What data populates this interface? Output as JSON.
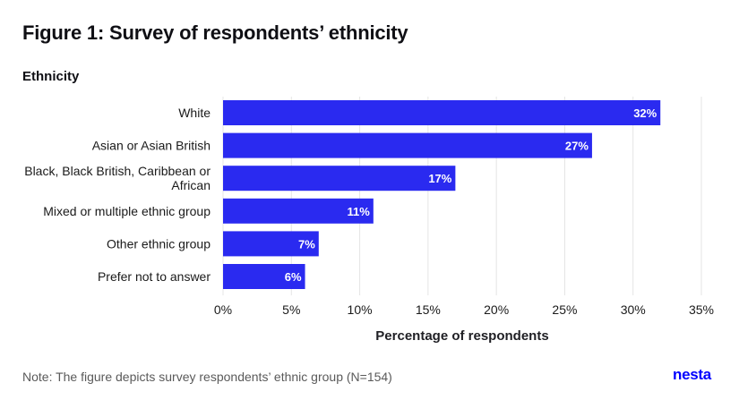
{
  "title": "Figure 1: Survey of respondents’ ethnicity",
  "note": "Note: The figure depicts survey respondents’ ethnic group (N=154)",
  "logo_text": "nesta",
  "colors": {
    "bar": "#2a2af0",
    "grid": "#e4e4e4",
    "label_inside": "#ffffff",
    "text": "#1a1a1a"
  },
  "chart_data": {
    "type": "bar",
    "orientation": "horizontal",
    "title": "Figure 1: Survey of respondents’ ethnicity",
    "ylabel": "Ethnicity",
    "xlabel": "Percentage of respondents",
    "categories": [
      [
        "White"
      ],
      [
        "Asian or Asian British"
      ],
      [
        "Black, Black British, Caribbean or",
        "African"
      ],
      [
        "Mixed or multiple ethnic group"
      ],
      [
        "Other ethnic group"
      ],
      [
        "Prefer not to answer"
      ]
    ],
    "values": [
      32,
      27,
      17,
      11,
      7,
      6
    ],
    "value_labels": [
      "32%",
      "27%",
      "17%",
      "11%",
      "7%",
      "6%"
    ],
    "xlim": [
      0,
      35
    ],
    "xticks": [
      0,
      5,
      10,
      15,
      20,
      25,
      30,
      35
    ],
    "xtick_labels": [
      "0%",
      "5%",
      "10%",
      "15%",
      "20%",
      "25%",
      "30%",
      "35%"
    ],
    "grid": true
  }
}
